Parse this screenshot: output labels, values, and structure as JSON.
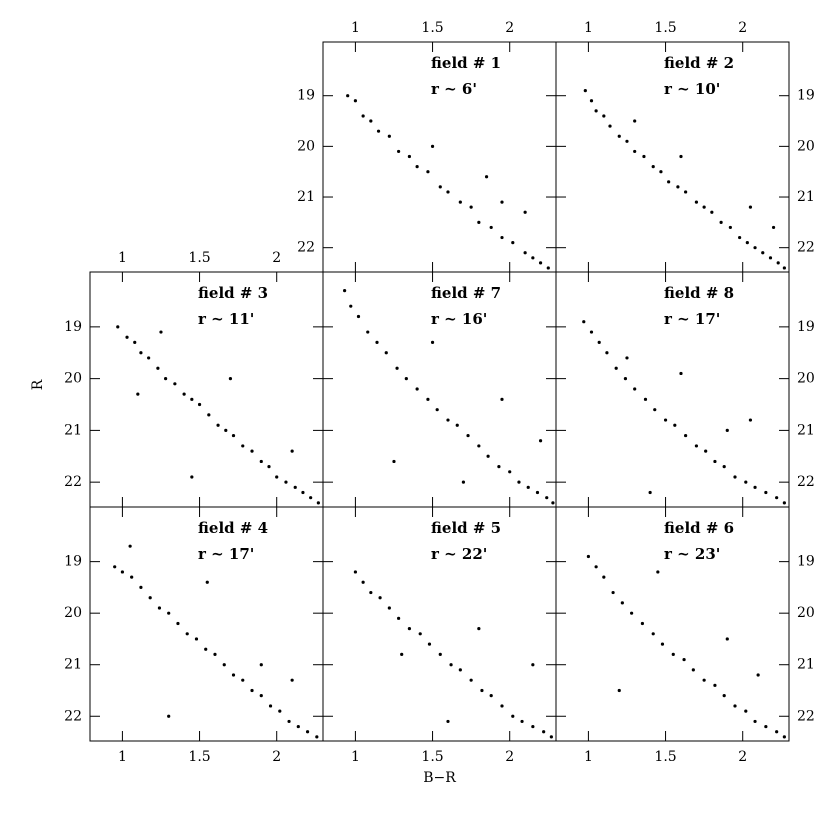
{
  "chart_data": [
    {
      "type": "scatter",
      "annotations": [
        "field # 1",
        "r ~ 6'"
      ],
      "x": [
        0.95,
        1.0,
        1.05,
        1.1,
        1.15,
        1.22,
        1.28,
        1.35,
        1.4,
        1.47,
        1.55,
        1.6,
        1.68,
        1.75,
        1.8,
        1.88,
        1.95,
        2.02,
        2.1,
        2.15,
        2.2,
        2.25,
        1.5,
        1.95,
        2.1,
        1.85
      ],
      "y": [
        19.0,
        19.1,
        19.4,
        19.5,
        19.7,
        19.8,
        20.1,
        20.2,
        20.4,
        20.5,
        20.8,
        20.9,
        21.1,
        21.2,
        21.5,
        21.6,
        21.8,
        21.9,
        22.1,
        22.2,
        22.3,
        22.4,
        20.0,
        21.1,
        21.3,
        20.6
      ],
      "color": "#000000",
      "xlim": [
        0.79,
        2.3
      ],
      "ylim": [
        22.48,
        17.94
      ],
      "xticks": [
        1,
        1.5,
        2
      ],
      "yticks": [
        19,
        20,
        21,
        22
      ]
    },
    {
      "type": "scatter",
      "annotations": [
        "field # 2",
        "r ~ 10'"
      ],
      "x": [
        0.98,
        1.02,
        1.05,
        1.1,
        1.14,
        1.2,
        1.25,
        1.3,
        1.36,
        1.42,
        1.47,
        1.52,
        1.58,
        1.63,
        1.7,
        1.75,
        1.8,
        1.86,
        1.92,
        1.98,
        2.03,
        2.08,
        2.13,
        2.18,
        2.23,
        2.27,
        1.6,
        2.05,
        1.3,
        2.2
      ],
      "y": [
        18.9,
        19.1,
        19.3,
        19.4,
        19.6,
        19.8,
        19.9,
        20.1,
        20.2,
        20.4,
        20.5,
        20.7,
        20.8,
        20.9,
        21.1,
        21.2,
        21.3,
        21.5,
        21.6,
        21.8,
        21.9,
        22.0,
        22.1,
        22.2,
        22.3,
        22.4,
        20.2,
        21.2,
        19.5,
        21.6
      ],
      "color": "#000000",
      "xlim": [
        0.79,
        2.3
      ],
      "ylim": [
        22.48,
        17.94
      ],
      "xticks": [
        1,
        1.5,
        2
      ],
      "yticks": [
        19,
        20,
        21,
        22
      ]
    },
    {
      "type": "scatter",
      "annotations": [
        "field # 3",
        "r ~ 11'"
      ],
      "ylabel": "R",
      "x": [
        0.97,
        1.03,
        1.08,
        1.12,
        1.17,
        1.23,
        1.28,
        1.34,
        1.4,
        1.45,
        1.5,
        1.56,
        1.62,
        1.67,
        1.72,
        1.78,
        1.84,
        1.9,
        1.95,
        2.0,
        2.06,
        2.12,
        2.17,
        2.22,
        2.27,
        1.1,
        1.7,
        2.1,
        1.45,
        1.25
      ],
      "y": [
        19.0,
        19.2,
        19.3,
        19.5,
        19.6,
        19.8,
        20.0,
        20.1,
        20.3,
        20.4,
        20.5,
        20.7,
        20.9,
        21.0,
        21.1,
        21.3,
        21.4,
        21.6,
        21.7,
        21.9,
        22.0,
        22.1,
        22.2,
        22.3,
        22.4,
        20.3,
        20.0,
        21.4,
        21.9,
        19.1
      ],
      "color": "#000000",
      "xlim": [
        0.79,
        2.3
      ],
      "ylim": [
        22.48,
        17.94
      ],
      "xticks": [
        1,
        1.5,
        2
      ],
      "yticks": [
        19,
        20,
        21,
        22
      ]
    },
    {
      "type": "scatter",
      "annotations": [
        "field # 7",
        "r ~ 16'"
      ],
      "x": [
        0.93,
        0.97,
        1.02,
        1.08,
        1.14,
        1.2,
        1.27,
        1.33,
        1.4,
        1.47,
        1.53,
        1.6,
        1.66,
        1.73,
        1.8,
        1.86,
        1.93,
        2.0,
        2.06,
        2.12,
        2.18,
        2.24,
        2.28,
        1.5,
        1.95,
        2.2,
        1.25,
        1.7
      ],
      "y": [
        18.3,
        18.6,
        18.8,
        19.1,
        19.3,
        19.5,
        19.8,
        20.0,
        20.2,
        20.4,
        20.6,
        20.8,
        20.9,
        21.1,
        21.3,
        21.5,
        21.7,
        21.8,
        22.0,
        22.1,
        22.2,
        22.3,
        22.4,
        19.3,
        20.4,
        21.2,
        21.6,
        22.0
      ],
      "color": "#000000",
      "xlim": [
        0.79,
        2.3
      ],
      "ylim": [
        22.48,
        17.94
      ],
      "xticks": [
        1,
        1.5,
        2
      ],
      "yticks": [
        19,
        20,
        21,
        22
      ]
    },
    {
      "type": "scatter",
      "annotations": [
        "field # 8",
        "r ~ 17'"
      ],
      "x": [
        0.97,
        1.02,
        1.07,
        1.12,
        1.18,
        1.24,
        1.3,
        1.37,
        1.43,
        1.5,
        1.56,
        1.63,
        1.7,
        1.76,
        1.82,
        1.88,
        1.95,
        2.02,
        2.08,
        2.15,
        2.22,
        2.27,
        1.25,
        1.6,
        2.05,
        1.9,
        1.4
      ],
      "y": [
        18.9,
        19.1,
        19.3,
        19.5,
        19.8,
        20.0,
        20.2,
        20.4,
        20.6,
        20.8,
        20.9,
        21.1,
        21.3,
        21.4,
        21.6,
        21.7,
        21.9,
        22.0,
        22.1,
        22.2,
        22.3,
        22.4,
        19.6,
        19.9,
        20.8,
        21.0,
        22.2
      ],
      "color": "#000000",
      "xlim": [
        0.79,
        2.3
      ],
      "ylim": [
        22.48,
        17.94
      ],
      "xticks": [
        1,
        1.5,
        2
      ],
      "yticks": [
        19,
        20,
        21,
        22
      ]
    },
    {
      "type": "scatter",
      "annotations": [
        "field # 4",
        "r ~ 17'"
      ],
      "x": [
        0.95,
        1.0,
        1.06,
        1.12,
        1.18,
        1.24,
        1.3,
        1.36,
        1.42,
        1.48,
        1.54,
        1.6,
        1.66,
        1.72,
        1.78,
        1.84,
        1.9,
        1.96,
        2.02,
        2.08,
        2.14,
        2.2,
        2.26,
        1.05,
        1.55,
        1.9,
        1.3,
        2.1
      ],
      "y": [
        19.1,
        19.2,
        19.3,
        19.5,
        19.7,
        19.9,
        20.0,
        20.2,
        20.4,
        20.5,
        20.7,
        20.8,
        21.0,
        21.2,
        21.3,
        21.5,
        21.6,
        21.8,
        21.9,
        22.1,
        22.2,
        22.3,
        22.4,
        18.7,
        19.4,
        21.0,
        22.0,
        21.3
      ],
      "color": "#000000",
      "xlim": [
        0.79,
        2.3
      ],
      "ylim": [
        22.48,
        17.94
      ],
      "xticks": [
        1,
        1.5,
        2
      ],
      "yticks": [
        19,
        20,
        21,
        22
      ]
    },
    {
      "type": "scatter",
      "annotations": [
        "field # 5",
        "r ~ 22'"
      ],
      "xlabel": "B−R",
      "x": [
        1.0,
        1.05,
        1.1,
        1.16,
        1.22,
        1.28,
        1.35,
        1.42,
        1.48,
        1.55,
        1.62,
        1.68,
        1.75,
        1.82,
        1.88,
        1.95,
        2.02,
        2.08,
        2.15,
        2.22,
        2.27,
        1.3,
        1.8,
        2.15,
        1.6
      ],
      "y": [
        19.2,
        19.4,
        19.6,
        19.7,
        19.9,
        20.1,
        20.3,
        20.4,
        20.6,
        20.8,
        21.0,
        21.1,
        21.3,
        21.5,
        21.6,
        21.8,
        22.0,
        22.1,
        22.2,
        22.3,
        22.4,
        20.8,
        20.3,
        21.0,
        22.1
      ],
      "color": "#000000",
      "xlim": [
        0.79,
        2.3
      ],
      "ylim": [
        22.48,
        17.94
      ],
      "xticks": [
        1,
        1.5,
        2
      ],
      "yticks": [
        19,
        20,
        21,
        22
      ]
    },
    {
      "type": "scatter",
      "annotations": [
        "field # 6",
        "r ~ 23'"
      ],
      "x": [
        1.0,
        1.05,
        1.1,
        1.16,
        1.22,
        1.28,
        1.35,
        1.42,
        1.48,
        1.55,
        1.62,
        1.68,
        1.75,
        1.82,
        1.88,
        1.95,
        2.02,
        2.08,
        2.15,
        2.22,
        2.27,
        1.45,
        1.9,
        1.2,
        2.1
      ],
      "y": [
        18.9,
        19.1,
        19.3,
        19.6,
        19.8,
        20.0,
        20.2,
        20.4,
        20.6,
        20.8,
        20.9,
        21.1,
        21.3,
        21.4,
        21.6,
        21.8,
        21.9,
        22.1,
        22.2,
        22.3,
        22.4,
        19.2,
        20.5,
        21.5,
        21.2
      ],
      "color": "#000000",
      "xlim": [
        0.79,
        2.3
      ],
      "ylim": [
        22.48,
        17.94
      ],
      "xticks": [
        1,
        1.5,
        2
      ],
      "yticks": [
        19,
        20,
        21,
        22
      ]
    }
  ]
}
